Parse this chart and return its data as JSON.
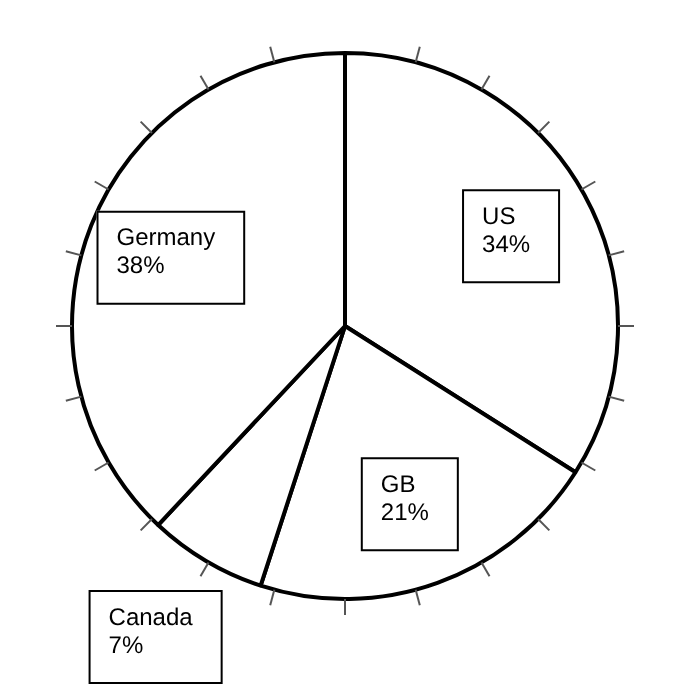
{
  "chart_data": {
    "type": "pie",
    "categories": [
      "US",
      "GB",
      "Canada",
      "Germany"
    ],
    "values": [
      34,
      21,
      7,
      38
    ],
    "colors": [
      "#ffffff",
      "#ffffff",
      "#ffffff",
      "#ffffff"
    ],
    "value_labels": [
      "34%",
      "21%",
      "7%",
      "38%"
    ],
    "legend": false
  }
}
